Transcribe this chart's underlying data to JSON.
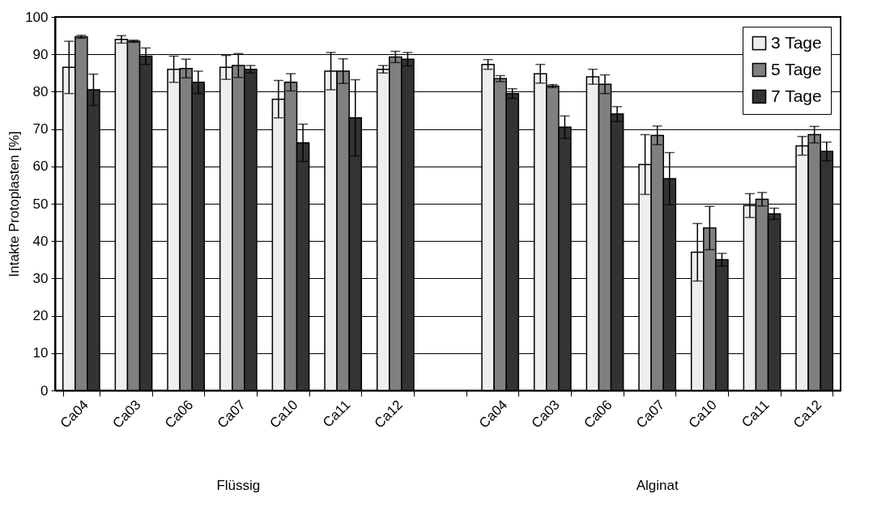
{
  "chart_data": {
    "type": "bar",
    "ylabel": "Intakte Protoplasten [%]",
    "categories": [
      "Ca04",
      "Ca03",
      "Ca06",
      "Ca07",
      "Ca10",
      "Ca11",
      "Ca12",
      null,
      "Ca04",
      "Ca03",
      "Ca06",
      "Ca07",
      "Ca10",
      "Ca11",
      "Ca12"
    ],
    "series": [
      {
        "name": "3 Tage",
        "color": "#eeeeee",
        "values": [
          86.5,
          94,
          86,
          86.5,
          78,
          85.5,
          86,
          null,
          87.3,
          84.8,
          84,
          60.5,
          37,
          49.5,
          65.5
        ],
        "errors": [
          7,
          1,
          3.5,
          3.2,
          5,
          5,
          1,
          null,
          1.3,
          2.5,
          2,
          8,
          7.7,
          3.2,
          2.5
        ]
      },
      {
        "name": "5 Tage",
        "color": "#808080",
        "values": [
          94.7,
          93.5,
          86.2,
          87,
          82.5,
          85.5,
          89.3,
          null,
          83.5,
          81.5,
          82,
          68.3,
          43.5,
          51.2,
          68.5
        ],
        "errors": [
          0.4,
          0.3,
          2.5,
          3.2,
          2.3,
          3.3,
          1.5,
          null,
          0.8,
          0.4,
          2.5,
          2.5,
          5.8,
          1.8,
          2.2
        ]
      },
      {
        "name": "7 Tage",
        "color": "#333333",
        "values": [
          80.5,
          89.5,
          82.5,
          86,
          66.3,
          73,
          88.7,
          null,
          79.5,
          70.5,
          74,
          56.7,
          35,
          47.3,
          64
        ],
        "errors": [
          4.2,
          2.2,
          3,
          1,
          5,
          10.2,
          1.8,
          null,
          1.3,
          3,
          2,
          7,
          1.7,
          1.5,
          2.5
        ]
      }
    ],
    "ylim": [
      0,
      100
    ],
    "yticks": [
      0,
      10,
      20,
      30,
      40,
      50,
      60,
      70,
      80,
      90,
      100
    ],
    "grid": "y",
    "legend": "top right",
    "annotations": [
      "Flüssig",
      "Alginat"
    ]
  }
}
